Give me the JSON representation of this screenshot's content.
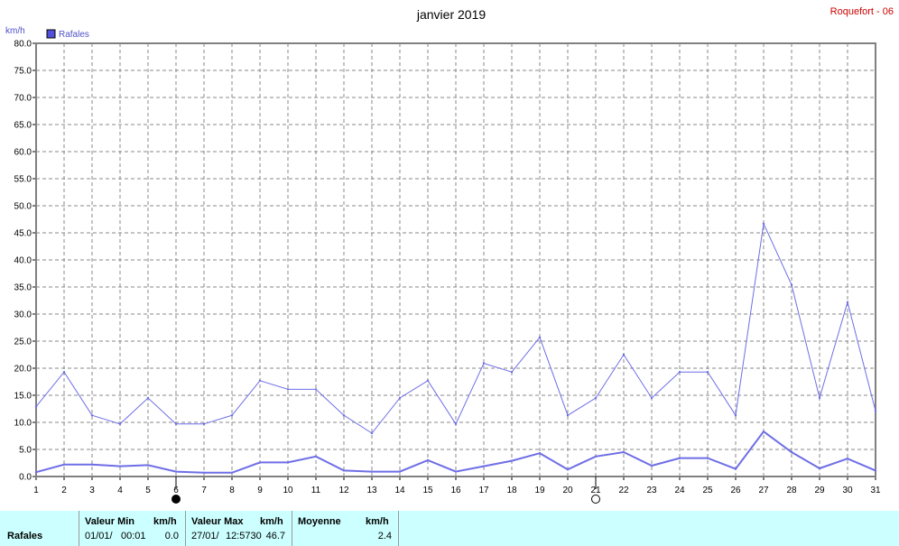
{
  "chart_data": {
    "type": "line",
    "title": "janvier 2019",
    "station": "Roquefort - 06",
    "unit": "km/h",
    "ylim": [
      0,
      80
    ],
    "y_ticks": [
      "0.0",
      "5.0",
      "10.0",
      "15.0",
      "20.0",
      "25.0",
      "30.0",
      "35.0",
      "40.0",
      "45.0",
      "50.0",
      "55.0",
      "60.0",
      "65.0",
      "70.0",
      "75.0",
      "80.0"
    ],
    "categories": [
      "1",
      "2",
      "3",
      "4",
      "5",
      "6",
      "7",
      "8",
      "9",
      "10",
      "11",
      "12",
      "13",
      "14",
      "15",
      "16",
      "17",
      "18",
      "19",
      "20",
      "21",
      "22",
      "23",
      "24",
      "25",
      "26",
      "27",
      "28",
      "29",
      "30",
      "31"
    ],
    "grid": true,
    "legend": {
      "position": "top-left",
      "entries": [
        "Rafales"
      ]
    },
    "series": [
      {
        "name": "Rafales",
        "role": "max",
        "color": "#6e6ee6",
        "values": [
          12.9,
          19.3,
          11.3,
          9.7,
          14.5,
          9.7,
          9.7,
          11.3,
          17.7,
          16.1,
          16.1,
          11.3,
          8.0,
          14.5,
          17.7,
          9.7,
          20.9,
          19.3,
          25.7,
          11.3,
          14.5,
          22.5,
          14.5,
          19.3,
          19.3,
          11.3,
          46.7,
          35.4,
          14.5,
          32.2,
          12.1
        ]
      },
      {
        "role": "mean",
        "color": "#6e6ee6",
        "values": [
          0.8,
          2.2,
          2.2,
          1.9,
          2.1,
          0.9,
          0.7,
          0.7,
          2.6,
          2.6,
          3.7,
          1.1,
          0.9,
          0.9,
          3.0,
          0.9,
          1.9,
          2.9,
          4.3,
          1.3,
          3.7,
          4.5,
          2.0,
          3.4,
          3.4,
          1.4,
          8.3,
          4.5,
          1.5,
          3.3,
          1.1
        ]
      }
    ],
    "moon_phases": [
      {
        "day": 6,
        "phase": "new"
      },
      {
        "day": 21,
        "phase": "full"
      }
    ]
  },
  "stats": {
    "row_label": "Rafales",
    "min_label": "Valeur Min",
    "min_unit": "km/h",
    "min_date": "01/01/",
    "min_time": "00:01",
    "min_value": "0.0",
    "max_label": "Valeur Max",
    "max_unit": "km/h",
    "max_date": "27/01/",
    "max_time": "12:5730",
    "max_value": "46.7",
    "mean_label": "Moyenne",
    "mean_unit": "km/h",
    "mean_value": "2.4"
  },
  "colors": {
    "series": "#6e6ee6",
    "station": "#cc0000",
    "stats_bg": "#ccffff",
    "legend_fill": "#5050dc"
  }
}
